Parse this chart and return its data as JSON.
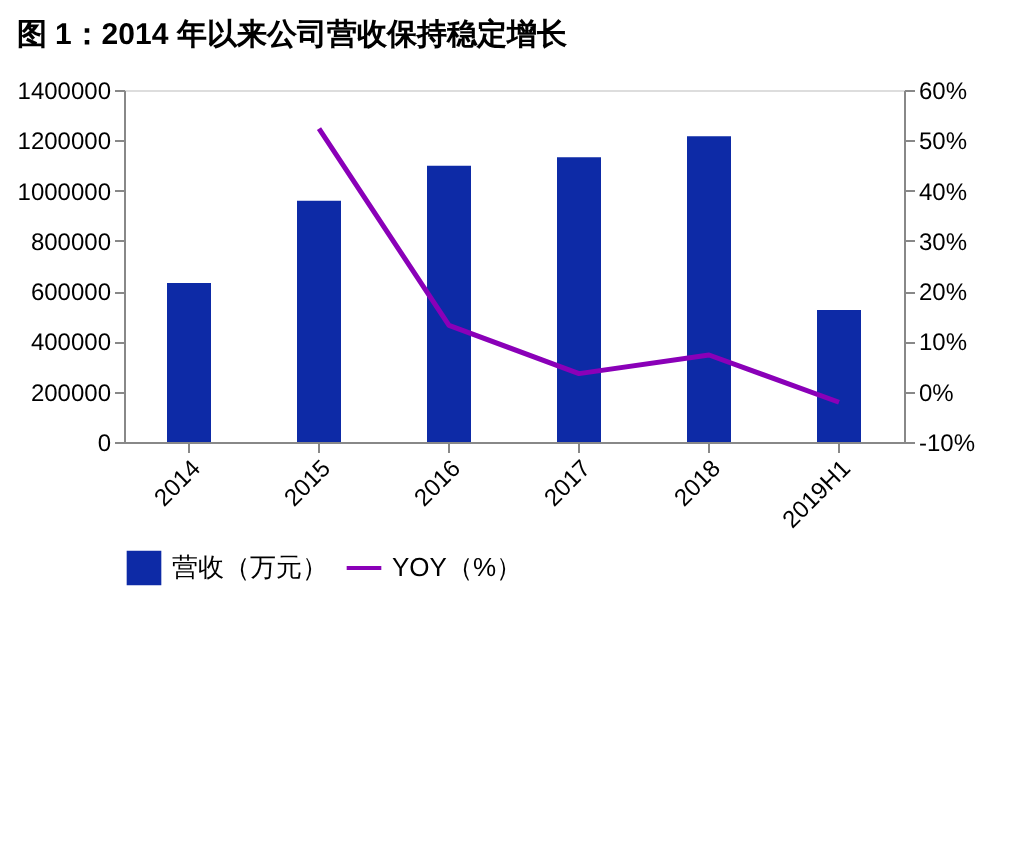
{
  "chart_data": {
    "type": "bar",
    "title": "图 1：2014 年以来公司营收保持稳定增长",
    "categories": [
      "2014",
      "2015",
      "2016",
      "2017",
      "2018",
      "2019H1"
    ],
    "series": [
      {
        "name": "营收（万元）",
        "color": "#0d2aa6",
        "values": [
          632000,
          960000,
          1099000,
          1133000,
          1216000,
          525000
        ]
      },
      {
        "name": "YOY（%）",
        "type": "line",
        "axis": "y2",
        "color": "#8a00b8",
        "values": [
          null,
          52.3,
          13.2,
          3.6,
          7.3,
          -2.1
        ]
      }
    ],
    "ylim": [
      0,
      1400000
    ],
    "yticks": [
      0,
      200000,
      400000,
      600000,
      800000,
      1000000,
      1200000,
      1400000
    ],
    "y2lim": [
      -10,
      60
    ],
    "y2ticks": [
      {
        "value": -10,
        "label": "-10%"
      },
      {
        "value": 0,
        "label": "0%"
      },
      {
        "value": 10,
        "label": "10%"
      },
      {
        "value": 20,
        "label": "20%"
      },
      {
        "value": 30,
        "label": "30%"
      },
      {
        "value": 40,
        "label": "40%"
      },
      {
        "value": 50,
        "label": "50%"
      },
      {
        "value": 60,
        "label": "60%"
      }
    ],
    "grid": false,
    "legend": "bottom",
    "marker": "none",
    "line_style": "solid"
  }
}
